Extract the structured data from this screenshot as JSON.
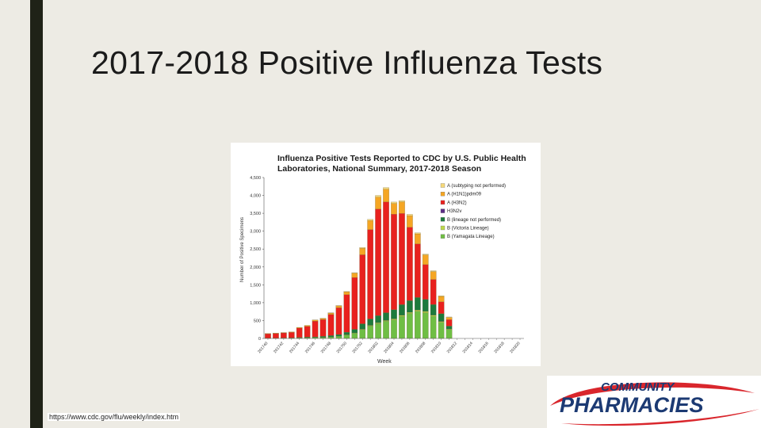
{
  "slide": {
    "title": "2017-2018 Positive Influenza Tests",
    "source_url": "https://www.cdc.gov/flu/weekly/index.htm"
  },
  "logo": {
    "line1": "COMMUNITY",
    "line2": "PHARMACIES",
    "colors": {
      "text": "#1c3a73",
      "swoosh": "#d9262c"
    }
  },
  "chart_data": {
    "type": "bar",
    "stacked": true,
    "title": "Influenza Positive Tests Reported to CDC by U.S. Public Health Laboratories, National Summary, 2017-2018 Season",
    "xlabel": "Week",
    "ylabel": "Number of Positive Specimens",
    "ylim": [
      0,
      4500
    ],
    "yticks": [
      "0",
      "500",
      "1,000",
      "1,500",
      "2,000",
      "2,500",
      "3,000",
      "3,500",
      "4,000",
      "4,500"
    ],
    "categories": [
      "201740",
      "201741",
      "201742",
      "201743",
      "201744",
      "201745",
      "201746",
      "201747",
      "201748",
      "201749",
      "201750",
      "201751",
      "201752",
      "201801",
      "201802",
      "201803",
      "201804",
      "201805",
      "201806",
      "201807",
      "201808",
      "201809",
      "201810",
      "201811",
      "201812",
      "201813",
      "201814",
      "201815",
      "201816",
      "201817",
      "201818",
      "201819",
      "201820"
    ],
    "xtick_labels": [
      "201740",
      "201742",
      "201744",
      "201746",
      "201748",
      "201750",
      "201752",
      "201802",
      "201804",
      "201806",
      "201808",
      "201810",
      "201812",
      "201814",
      "201816",
      "201818",
      "201820"
    ],
    "series": [
      {
        "name": "B (Yamagata Lineage)",
        "color": "#6fbe44",
        "values": [
          5,
          5,
          5,
          10,
          15,
          20,
          25,
          30,
          40,
          60,
          100,
          150,
          250,
          350,
          420,
          480,
          520,
          620,
          700,
          760,
          720,
          620,
          450,
          250,
          0,
          0,
          0,
          0,
          0,
          0,
          0,
          0,
          0
        ]
      },
      {
        "name": "B (Victoria Lineage)",
        "color": "#bcd84a",
        "values": [
          0,
          0,
          0,
          0,
          0,
          0,
          0,
          0,
          0,
          0,
          5,
          5,
          10,
          15,
          20,
          20,
          25,
          25,
          30,
          35,
          35,
          30,
          25,
          15,
          0,
          0,
          0,
          0,
          0,
          0,
          0,
          0,
          0
        ]
      },
      {
        "name": "B (lineage not performed)",
        "color": "#1d7a3c",
        "values": [
          5,
          5,
          10,
          10,
          15,
          20,
          20,
          30,
          40,
          50,
          70,
          100,
          150,
          180,
          200,
          220,
          260,
          300,
          330,
          350,
          340,
          300,
          220,
          80,
          0,
          0,
          0,
          0,
          0,
          0,
          0,
          0,
          0
        ]
      },
      {
        "name": "H3N2v",
        "color": "#5b2d86",
        "values": [
          0,
          0,
          0,
          0,
          0,
          0,
          0,
          0,
          0,
          0,
          0,
          0,
          0,
          0,
          0,
          0,
          0,
          0,
          0,
          0,
          0,
          0,
          0,
          0,
          0,
          0,
          0,
          0,
          0,
          0,
          0,
          0,
          0
        ]
      },
      {
        "name": "A (H3N2)",
        "color": "#e8211e",
        "values": [
          120,
          130,
          140,
          150,
          260,
          300,
          440,
          470,
          590,
          750,
          1050,
          1450,
          1930,
          2500,
          2980,
          3100,
          2670,
          2550,
          2050,
          1500,
          970,
          700,
          330,
          180,
          0,
          0,
          0,
          0,
          0,
          0,
          0,
          0,
          0
        ]
      },
      {
        "name": "A (H1N1)pdm09",
        "color": "#f5a623",
        "values": [
          10,
          10,
          10,
          15,
          20,
          25,
          30,
          30,
          40,
          50,
          80,
          120,
          180,
          250,
          330,
          350,
          300,
          320,
          320,
          280,
          270,
          220,
          150,
          60,
          0,
          0,
          0,
          0,
          0,
          0,
          0,
          0,
          0
        ]
      },
      {
        "name": "A (subtyping not performed)",
        "color": "#f6d97a",
        "values": [
          0,
          0,
          0,
          0,
          0,
          0,
          5,
          5,
          5,
          10,
          10,
          15,
          25,
          35,
          50,
          50,
          40,
          40,
          40,
          30,
          25,
          25,
          20,
          15,
          0,
          0,
          0,
          0,
          0,
          0,
          0,
          0,
          0
        ]
      }
    ],
    "legend": {
      "placement": "right",
      "order": [
        6,
        5,
        4,
        3,
        2,
        1,
        0
      ]
    },
    "grid": false
  }
}
